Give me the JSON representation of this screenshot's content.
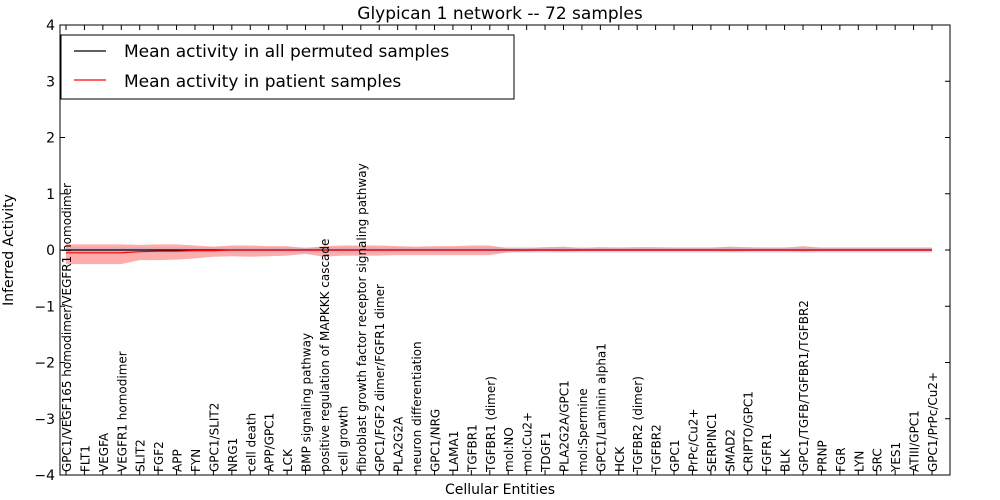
{
  "chart_data": {
    "type": "line",
    "title": "Glypican 1 network -- 72 samples",
    "xlabel": "Cellular Entities",
    "ylabel": "Inferred Activity",
    "ylim": [
      -4,
      4
    ],
    "yticks": [
      4,
      3,
      2,
      1,
      0,
      -1,
      -2,
      -3,
      -4
    ],
    "ytick_labels": [
      "4",
      "3",
      "2",
      "1",
      "0",
      "−1",
      "−2",
      "−3",
      "−4"
    ],
    "grid": false,
    "legend_position": "top-left",
    "categories": [
      "GPC1/VEGF165 homodimer/VEGFR1 homodimer",
      "FLT1",
      "VEGFA",
      "VEGFR1 homodimer",
      "SLIT2",
      "FGF2",
      "APP",
      "FYN",
      "GPC1/SLIT2",
      "NRG1",
      "cell death",
      "APP/GPC1",
      "LCK",
      "BMP signaling pathway",
      "positive regulation of MAPKKK cascade",
      "cell growth",
      "fibroblast growth factor receptor signaling pathway",
      "GPC1/FGF2 dimer/FGFR1 dimer",
      "PLA2G2A",
      "neuron differentiation",
      "GPC1/NRG",
      "LAMA1",
      "TGFBR1",
      "TGFBR1 (dimer)",
      "mol:NO",
      "mol:Cu2+",
      "TDGF1",
      "PLA2G2A/GPC1",
      "mol:Spermine",
      "GPC1/Laminin alpha1",
      "HCK",
      "TGFBR2 (dimer)",
      "TGFBR2",
      "GPC1",
      "PrPc/Cu2+",
      "SERPINC1",
      "SMAD2",
      "CRIPTO/GPC1",
      "FGFR1",
      "BLK",
      "GPC1/TGFB/TGFBR1/TGFBR2",
      "PRNP",
      "FGR",
      "LYN",
      "SRC",
      "YES1",
      "ATIII/GPC1",
      "GPC1/PrPc/Cu2+"
    ],
    "series": [
      {
        "name": "Mean activity in all permuted samples",
        "color": "#000000",
        "values": [
          0,
          0,
          0,
          0,
          0,
          0,
          0,
          0,
          0,
          0,
          0,
          0,
          0,
          0,
          0,
          0,
          0,
          0,
          0,
          0,
          0,
          0,
          0,
          0,
          0,
          0,
          0,
          0,
          0,
          0,
          0,
          0,
          0,
          0,
          0,
          0,
          0,
          0,
          0,
          0,
          0,
          0,
          0,
          0,
          0,
          0,
          0,
          0
        ],
        "band_color": "#b0b0c8",
        "band_lower": [
          -0.05,
          -0.05,
          -0.05,
          -0.05,
          -0.05,
          -0.05,
          -0.05,
          -0.05,
          -0.05,
          -0.05,
          -0.05,
          -0.05,
          -0.05,
          -0.05,
          -0.05,
          -0.05,
          -0.05,
          -0.05,
          -0.05,
          -0.05,
          -0.05,
          -0.05,
          -0.05,
          -0.05,
          -0.05,
          -0.05,
          -0.05,
          -0.05,
          -0.05,
          -0.05,
          -0.05,
          -0.05,
          -0.05,
          -0.05,
          -0.05,
          -0.05,
          -0.05,
          -0.05,
          -0.05,
          -0.05,
          -0.05,
          -0.05,
          -0.05,
          -0.05,
          -0.05,
          -0.05,
          -0.05,
          -0.05
        ],
        "band_upper": [
          0.05,
          0.05,
          0.05,
          0.05,
          0.05,
          0.05,
          0.05,
          0.05,
          0.05,
          0.05,
          0.05,
          0.05,
          0.05,
          0.05,
          0.05,
          0.05,
          0.05,
          0.05,
          0.05,
          0.05,
          0.05,
          0.05,
          0.05,
          0.05,
          0.05,
          0.05,
          0.05,
          0.05,
          0.05,
          0.05,
          0.05,
          0.05,
          0.05,
          0.05,
          0.05,
          0.05,
          0.05,
          0.05,
          0.05,
          0.05,
          0.05,
          0.05,
          0.05,
          0.05,
          0.05,
          0.05,
          0.05,
          0.05
        ]
      },
      {
        "name": "Mean activity in patient samples",
        "color": "#ff0000",
        "values": [
          -0.05,
          -0.05,
          -0.05,
          -0.05,
          -0.03,
          -0.02,
          -0.02,
          -0.01,
          -0.01,
          0,
          0,
          0,
          0,
          0,
          0,
          0,
          0,
          0,
          0,
          0,
          0,
          0,
          0,
          0,
          0,
          0,
          0,
          0,
          0,
          0,
          0,
          0,
          0,
          0,
          0,
          0,
          0,
          0,
          0,
          0,
          0,
          0,
          0,
          0,
          0,
          0,
          0,
          0
        ],
        "band_color": "#ff8080",
        "band_lower": [
          -0.25,
          -0.25,
          -0.25,
          -0.25,
          -0.18,
          -0.18,
          -0.17,
          -0.15,
          -0.12,
          -0.11,
          -0.12,
          -0.11,
          -0.1,
          -0.07,
          -0.12,
          -0.1,
          -0.1,
          -0.1,
          -0.09,
          -0.09,
          -0.09,
          -0.09,
          -0.09,
          -0.09,
          -0.04,
          -0.03,
          -0.02,
          -0.03,
          -0.02,
          -0.02,
          -0.02,
          -0.02,
          -0.02,
          -0.02,
          -0.02,
          -0.02,
          -0.03,
          -0.02,
          -0.02,
          -0.02,
          -0.03,
          -0.02,
          -0.02,
          -0.02,
          -0.02,
          -0.02,
          -0.02,
          -0.02
        ],
        "band_upper": [
          0.1,
          0.1,
          0.1,
          0.1,
          0.09,
          0.1,
          0.1,
          0.08,
          0.06,
          0.08,
          0.08,
          0.07,
          0.07,
          0.03,
          0.07,
          0.08,
          0.08,
          0.08,
          0.07,
          0.06,
          0.07,
          0.07,
          0.08,
          0.08,
          0.03,
          0.03,
          0.05,
          0.06,
          0.03,
          0.05,
          0.04,
          0.05,
          0.05,
          0.04,
          0.04,
          0.04,
          0.06,
          0.05,
          0.04,
          0.04,
          0.07,
          0.04,
          0.04,
          0.04,
          0.04,
          0.04,
          0.04,
          0.04
        ]
      }
    ]
  }
}
